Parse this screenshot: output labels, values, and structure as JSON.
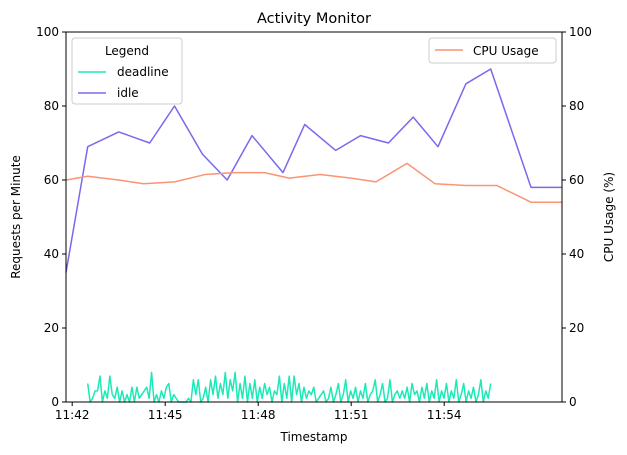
{
  "chart_data": {
    "type": "line",
    "title": "Activity Monitor",
    "xlabel": "Timestamp",
    "ylabel_left": "Requests per Minute",
    "ylabel_right": "CPU Usage (%)",
    "x_unit": "minute (clock time)",
    "xlim": [
      "11:41.8",
      "11:57.8"
    ],
    "x_ticks": [
      "11:42",
      "11:45",
      "11:48",
      "11:51",
      "11:54"
    ],
    "ylim_left": [
      0,
      100
    ],
    "ylim_right": [
      0,
      100
    ],
    "y_ticks_left": [
      0,
      20,
      40,
      60,
      80,
      100
    ],
    "y_ticks_right": [
      0,
      20,
      40,
      60,
      80,
      100
    ],
    "grid": false,
    "legends": [
      {
        "title": "Legend",
        "placement": "upper-left",
        "entries": [
          "deadline",
          "idle"
        ]
      },
      {
        "title": "",
        "placement": "upper-right",
        "entries": [
          "CPU Usage"
        ]
      }
    ],
    "series": [
      {
        "name": "idle",
        "axis": "left",
        "color": "#7b68ee",
        "x": [
          "11:41.8",
          "11:42.5",
          "11:43.5",
          "11:44.5",
          "11:45.3",
          "11:46.2",
          "11:47.0",
          "11:47.8",
          "11:48.8",
          "11:49.5",
          "11:50.5",
          "11:51.3",
          "11:52.2",
          "11:53.0",
          "11:53.8",
          "11:54.7",
          "11:55.5",
          "11:56.8",
          "11:57.8"
        ],
        "values": [
          35,
          69,
          73,
          70,
          80,
          67,
          60,
          72,
          62,
          75,
          68,
          72,
          70,
          77,
          69,
          86,
          90,
          58,
          58
        ]
      },
      {
        "name": "CPU Usage",
        "axis": "right",
        "color": "#fa9473",
        "x": [
          "11:41.8",
          "11:42.5",
          "11:43.5",
          "11:44.3",
          "11:45.3",
          "11:46.3",
          "11:47.2",
          "11:48.2",
          "11:49.0",
          "11:50.0",
          "11:51.0",
          "11:51.8",
          "11:52.8",
          "11:53.7",
          "11:54.7",
          "11:55.7",
          "11:56.8",
          "11:57.8"
        ],
        "values": [
          60,
          61,
          60,
          59,
          59.5,
          61.5,
          62,
          62,
          60.5,
          61.5,
          60.5,
          59.5,
          64.5,
          59,
          58.5,
          58.5,
          54,
          54
        ]
      },
      {
        "name": "deadline",
        "axis": "left",
        "color": "#1de9b6",
        "x_start": "11:42.5",
        "x_end": "11:55.5",
        "values": [
          5,
          0,
          1,
          3,
          3,
          7,
          0,
          3,
          1,
          7,
          2,
          1,
          4,
          0,
          3,
          0,
          2,
          0,
          4,
          0,
          4,
          1,
          2,
          3,
          4,
          1,
          8,
          0,
          2,
          0,
          3,
          1,
          4,
          5,
          0,
          2,
          1,
          0,
          0,
          0,
          0,
          1,
          0,
          6,
          2,
          6,
          0,
          1,
          4,
          0,
          6,
          2,
          7,
          1,
          5,
          2,
          8,
          1,
          6,
          3,
          8,
          0,
          5,
          1,
          7,
          0,
          5,
          1,
          6,
          0,
          4,
          1,
          5,
          2,
          4,
          0,
          3,
          2,
          7,
          0,
          5,
          1,
          7,
          0,
          7,
          2,
          5,
          0,
          4,
          1,
          3,
          2,
          4,
          0,
          1,
          2,
          3,
          0,
          1,
          4,
          0,
          2,
          5,
          0,
          2,
          6,
          0,
          3,
          1,
          4,
          0,
          3,
          1,
          5,
          0,
          2,
          3,
          6,
          0,
          2,
          5,
          0,
          1,
          6,
          0,
          2,
          3,
          1,
          3,
          1,
          4,
          0,
          5,
          2,
          3,
          0,
          4,
          1,
          5,
          0,
          3,
          1,
          6,
          0,
          3,
          1,
          5,
          0,
          3,
          1,
          6,
          0,
          2,
          5,
          0,
          3,
          1,
          4,
          0,
          2,
          6,
          0,
          3,
          1,
          5
        ]
      }
    ]
  }
}
